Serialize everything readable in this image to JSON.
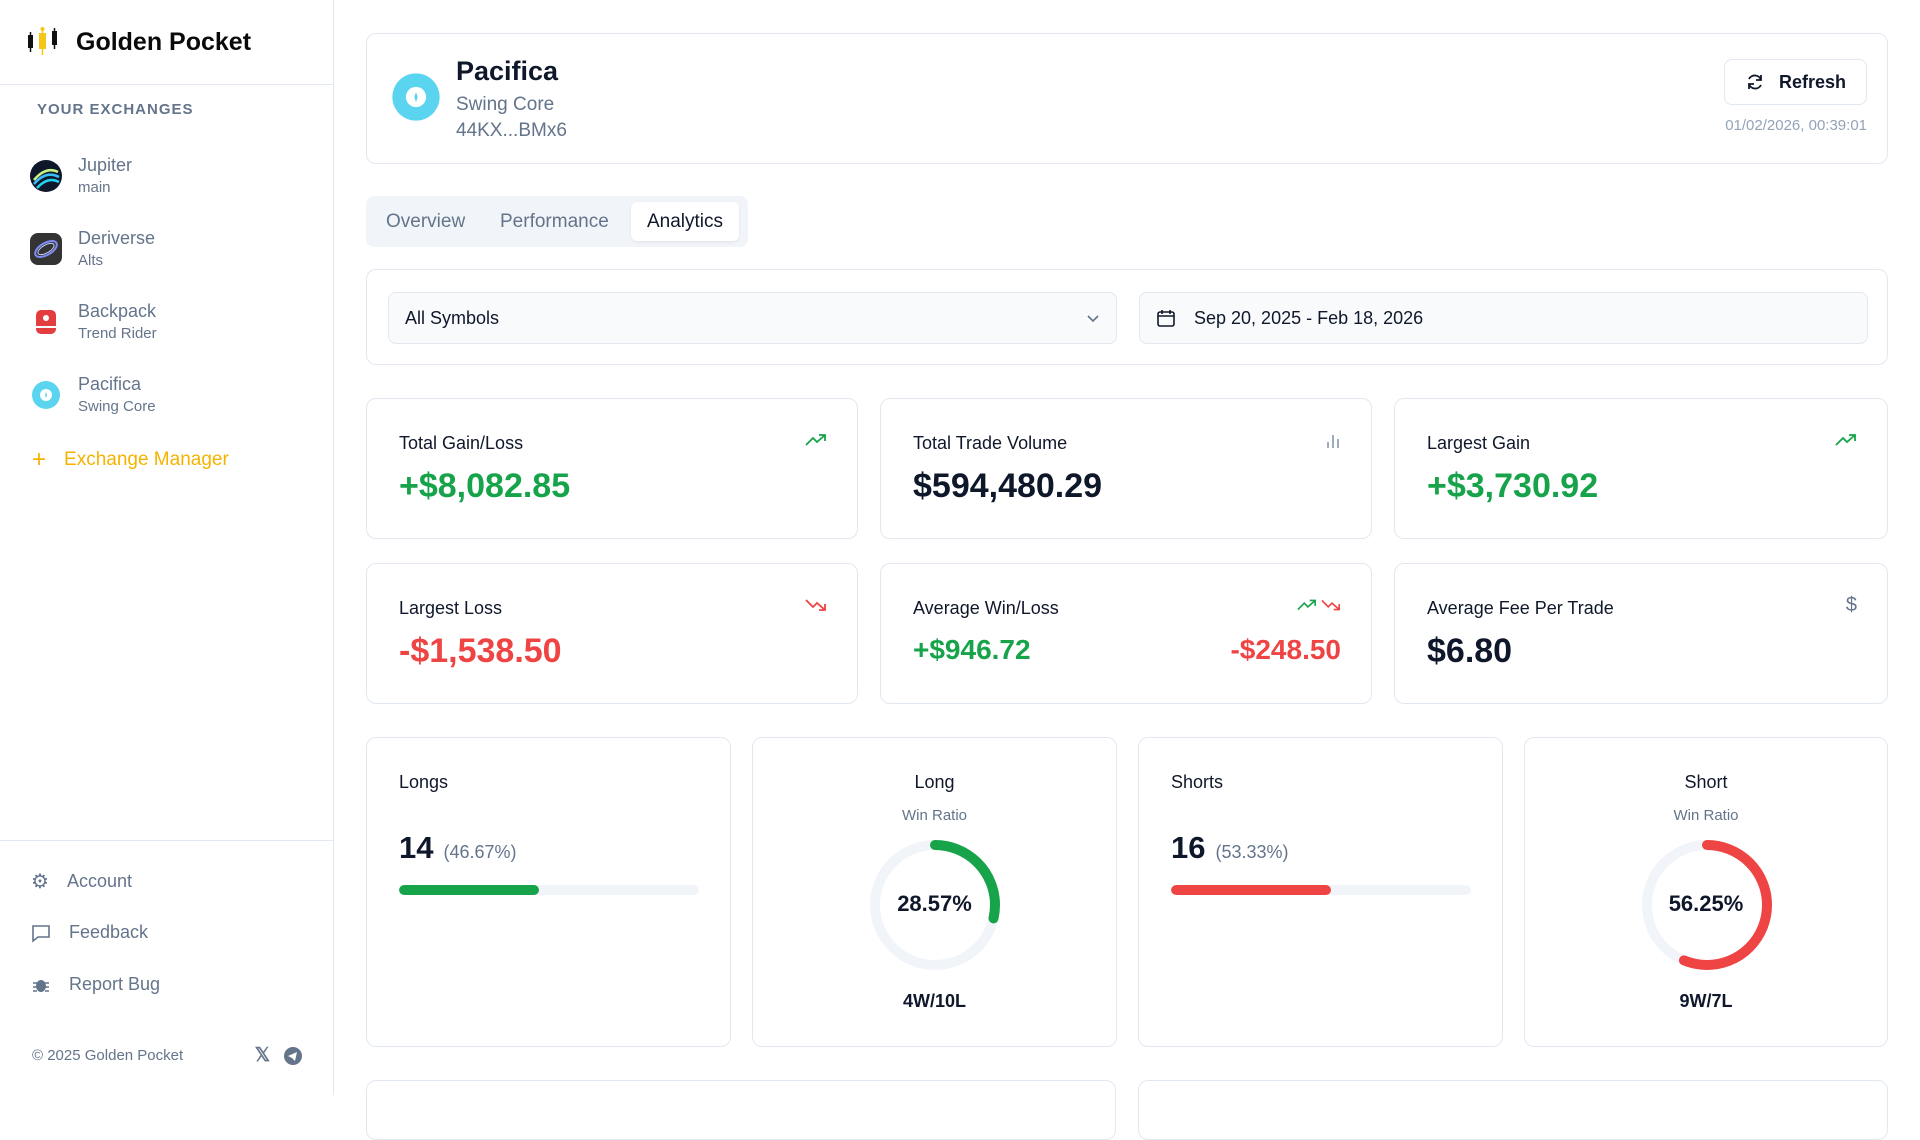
{
  "app": {
    "name": "Golden Pocket"
  },
  "sidebar": {
    "section_title": "YOUR EXCHANGES",
    "exchanges": [
      {
        "name": "Jupiter",
        "sub": "main",
        "icon": "jupiter-logo"
      },
      {
        "name": "Deriverse",
        "sub": "Alts",
        "icon": "deriverse-logo"
      },
      {
        "name": "Backpack",
        "sub": "Trend Rider",
        "icon": "backpack-logo"
      },
      {
        "name": "Pacifica",
        "sub": "Swing Core",
        "icon": "pacifica-logo"
      }
    ],
    "exchange_manager": "Exchange Manager",
    "bottom": [
      {
        "label": "Account",
        "icon": "gear-icon"
      },
      {
        "label": "Feedback",
        "icon": "message-icon"
      },
      {
        "label": "Report Bug",
        "icon": "bug-icon"
      }
    ],
    "copyright": "© 2025 Golden Pocket"
  },
  "header": {
    "title": "Pacifica",
    "subtitle": "Swing Core",
    "address": "44KX...BMx6",
    "refresh": "Refresh",
    "timestamp": "01/02/2026, 00:39:01"
  },
  "tabs": [
    {
      "label": "Overview"
    },
    {
      "label": "Performance"
    },
    {
      "label": "Analytics",
      "active": true
    }
  ],
  "filters": {
    "symbol": "All Symbols",
    "date_range": "Sep 20, 2025 - Feb 18, 2026"
  },
  "stats": {
    "total_gain": {
      "label": "Total Gain/Loss",
      "value": "+$8,082.85"
    },
    "volume": {
      "label": "Total Trade Volume",
      "value": "$594,480.29"
    },
    "largest_gain": {
      "label": "Largest Gain",
      "value": "+$3,730.92"
    },
    "largest_loss": {
      "label": "Largest Loss",
      "value": "-$1,538.50"
    },
    "avg_winloss": {
      "label": "Average Win/Loss",
      "win": "+$946.72",
      "loss": "-$248.50"
    },
    "avg_fee": {
      "label": "Average Fee Per Trade",
      "value": "$6.80"
    }
  },
  "longs": {
    "label": "Longs",
    "count": "14",
    "pct": "(46.67%)",
    "fill_percent": 46.67,
    "color": "#16a34a"
  },
  "long_ratio": {
    "title": "Long",
    "subtitle": "Win Ratio",
    "value": "28.57%",
    "percent": 28.57,
    "record": "4W/10L",
    "color": "#16a34a"
  },
  "shorts": {
    "label": "Shorts",
    "count": "16",
    "pct": "(53.33%)",
    "fill_percent": 53.33,
    "color": "#ef4444"
  },
  "short_ratio": {
    "title": "Short",
    "subtitle": "Win Ratio",
    "value": "56.25%",
    "percent": 56.25,
    "record": "9W/7L",
    "color": "#ef4444"
  }
}
